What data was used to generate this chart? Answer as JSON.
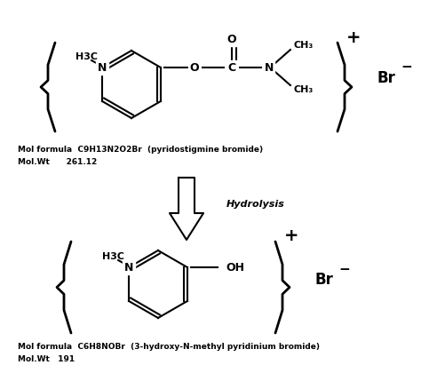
{
  "background_color": "#ffffff",
  "fig_width": 4.74,
  "fig_height": 4.11,
  "dpi": 100,
  "top_formula_line1": "Mol formula  C9H13N2O2Br  (pyridostigmine bromide)",
  "top_formula_line2": "Mol.Wt      261.12",
  "bottom_formula_line1": "Mol formula  C6H8NOBr  (3-hydroxy-N-methyl pyridinium bromide)",
  "bottom_formula_line2": "Mol.Wt   191",
  "hydrolysis_label": "Hydrolysis"
}
